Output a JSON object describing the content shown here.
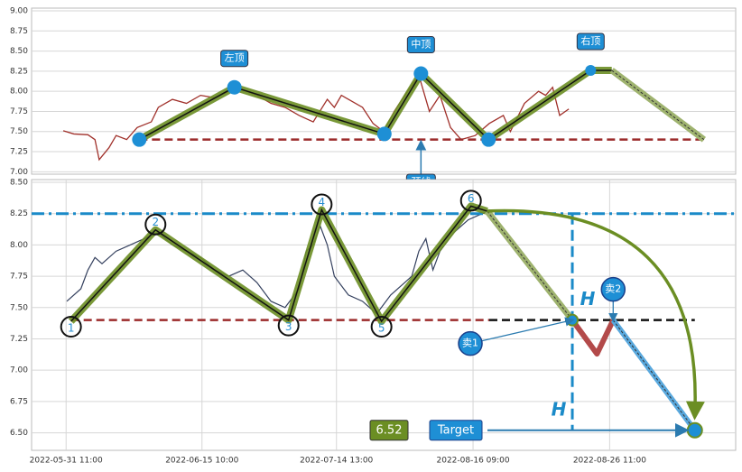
{
  "chart_data": [
    {
      "type": "line",
      "xlim": [
        0,
        100
      ],
      "ylim": [
        6.97,
        9.0
      ],
      "yticks": [
        {
          "value": 7.0,
          "label": "7.00"
        },
        {
          "value": 7.25,
          "label": "7.25"
        },
        {
          "value": 7.5,
          "label": "7.50"
        },
        {
          "value": 7.75,
          "label": "7.75"
        },
        {
          "value": 8.0,
          "label": "8.00"
        },
        {
          "value": 8.25,
          "label": "8.25"
        },
        {
          "value": 8.5,
          "label": "8.50"
        },
        {
          "value": 8.75,
          "label": "8.75"
        },
        {
          "value": 9.0,
          "label": "9.00"
        }
      ],
      "grid": true,
      "series": [
        {
          "color": "#a0302a",
          "x": [
            4.5,
            6,
            8,
            9,
            9.6,
            11,
            12,
            13.5,
            15,
            17,
            18,
            20,
            22,
            24,
            26,
            28,
            30,
            32,
            34,
            36,
            38,
            40,
            42,
            43,
            44,
            45,
            47,
            48.5,
            50,
            51.5,
            53,
            55,
            56.5,
            58,
            59.5,
            61,
            63,
            65,
            67,
            68,
            70,
            72,
            73,
            74,
            75,
            76.3
          ],
          "values": [
            7.51,
            7.47,
            7.46,
            7.4,
            7.15,
            7.3,
            7.45,
            7.4,
            7.55,
            7.62,
            7.8,
            7.9,
            7.85,
            7.95,
            7.92,
            8.0,
            8.02,
            7.95,
            7.85,
            7.8,
            7.7,
            7.62,
            7.9,
            7.8,
            7.95,
            7.9,
            7.8,
            7.6,
            7.5,
            7.75,
            7.95,
            8.2,
            7.75,
            7.95,
            7.55,
            7.4,
            7.45,
            7.6,
            7.7,
            7.5,
            7.85,
            8.0,
            7.95,
            8.05,
            7.7,
            7.78
          ]
        },
        {
          "color": "#6b8e23",
          "x": [
            15.3,
            28.8,
            50.1,
            55.3,
            64.9,
            79.4,
            82.4,
            95.5
          ],
          "values": [
            7.4,
            8.05,
            7.47,
            8.22,
            7.4,
            8.26,
            8.26,
            7.4
          ]
        }
      ],
      "neckline": 7.4,
      "annotations": [
        "左顶",
        "中顶",
        "右顶",
        "颈线"
      ]
    },
    {
      "type": "line",
      "xlim": [
        0,
        100
      ],
      "ylim": [
        6.36,
        8.5
      ],
      "yticks": [
        {
          "value": 6.5,
          "label": "6.50"
        },
        {
          "value": 6.75,
          "label": "6.75"
        },
        {
          "value": 7.0,
          "label": "7.00"
        },
        {
          "value": 7.25,
          "label": "7.25"
        },
        {
          "value": 7.5,
          "label": "7.50"
        },
        {
          "value": 7.75,
          "label": "7.75"
        },
        {
          "value": 8.0,
          "label": "8.00"
        },
        {
          "value": 8.25,
          "label": "8.25"
        },
        {
          "value": 8.5,
          "label": "8.50"
        }
      ],
      "xticks": [
        {
          "value": 4.9,
          "label": "2022-05-31 11:00"
        },
        {
          "value": 24.2,
          "label": "2022-06-15 10:00"
        },
        {
          "value": 43.3,
          "label": "2022-07-14 13:00"
        },
        {
          "value": 62.7,
          "label": "2022-08-16 09:00"
        },
        {
          "value": 82.1,
          "label": "2022-08-26 11:00"
        }
      ],
      "grid": true,
      "series": [
        {
          "color": "#34405e",
          "x": [
            5,
            7,
            8,
            9,
            10,
            12,
            14,
            16,
            18,
            20,
            22,
            24,
            26,
            28,
            30,
            32,
            34,
            36,
            38,
            39,
            40,
            41,
            42,
            43,
            45,
            47,
            49,
            51,
            53,
            54,
            55,
            56,
            57,
            58,
            60,
            62,
            64,
            65
          ],
          "values": [
            7.55,
            7.65,
            7.8,
            7.9,
            7.85,
            7.95,
            8.0,
            8.05,
            8.1,
            8.0,
            7.95,
            7.9,
            7.8,
            7.75,
            7.8,
            7.7,
            7.55,
            7.5,
            7.65,
            7.95,
            8.0,
            8.15,
            8.0,
            7.75,
            7.6,
            7.55,
            7.45,
            7.6,
            7.7,
            7.75,
            7.95,
            8.05,
            7.8,
            7.95,
            8.1,
            8.2,
            8.25,
            8.27
          ]
        },
        {
          "color": "#6b8e23",
          "x": [
            5.6,
            17.6,
            36.5,
            41.2,
            49.7,
            62.4,
            64.7,
            76.8
          ],
          "values": [
            7.39,
            8.12,
            7.4,
            8.28,
            7.39,
            8.31,
            8.27,
            7.4
          ]
        },
        {
          "color": "#b34a4a",
          "x": [
            76.8,
            80.3,
            82.6,
            94.2
          ],
          "values": [
            7.4,
            7.13,
            7.4,
            6.52
          ]
        }
      ],
      "resistance": 8.25,
      "neckline": 7.4,
      "vertex_labels": [
        "1",
        "2",
        "3",
        "4",
        "5",
        "6"
      ],
      "sell_labels": [
        "卖1",
        "卖2"
      ],
      "measure_labels": [
        "H",
        "H"
      ],
      "target_value_label": "6.52",
      "target_label": "Target"
    }
  ]
}
